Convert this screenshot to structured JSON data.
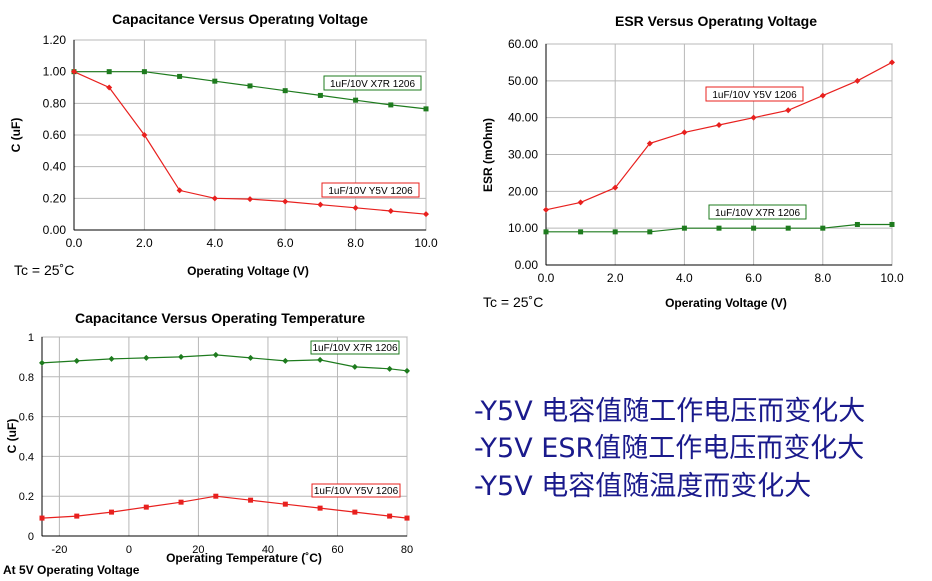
{
  "chart_data": [
    {
      "type": "line",
      "title": "Capacitance Versus Operatıng Voltage",
      "xlabel": "Operating Voltage (V)",
      "ylabel": "C (uF)",
      "xlim": [
        0,
        10
      ],
      "ylim": [
        0,
        1.2
      ],
      "xticks": [
        "0.0",
        "2.0",
        "4.0",
        "6.0",
        "8.0",
        "10.0"
      ],
      "yticks": [
        "0.00",
        "0.20",
        "0.40",
        "0.60",
        "0.80",
        "1.00",
        "1.20"
      ],
      "note": "Tc = 25˚C",
      "grid": true,
      "series": [
        {
          "name": "1uF/10V X7R 1206",
          "color": "#1e7b1e",
          "marker": "square",
          "x": [
            0,
            1,
            2,
            3,
            4,
            5,
            6,
            7,
            8,
            9,
            10
          ],
          "y": [
            1.0,
            1.0,
            1.0,
            0.97,
            0.94,
            0.91,
            0.88,
            0.85,
            0.82,
            0.79,
            0.765
          ]
        },
        {
          "name": "1uF/10V Y5V 1206",
          "color": "#e8201e",
          "marker": "diamond",
          "x": [
            0,
            1,
            2,
            3,
            4,
            5,
            6,
            7,
            8,
            9,
            10
          ],
          "y": [
            1.0,
            0.9,
            0.6,
            0.25,
            0.2,
            0.195,
            0.18,
            0.16,
            0.14,
            0.12,
            0.1
          ]
        }
      ]
    },
    {
      "type": "line",
      "title": "ESR Versus Operatıng Voltage",
      "xlabel": "Operating Voltage (V)",
      "ylabel": "ESR (mOhm)",
      "xlim": [
        0,
        10
      ],
      "ylim": [
        0,
        60
      ],
      "xticks": [
        "0.0",
        "2.0",
        "4.0",
        "6.0",
        "8.0",
        "10.0"
      ],
      "yticks": [
        "0.00",
        "10.00",
        "20.00",
        "30.00",
        "40.00",
        "50.00",
        "60.00"
      ],
      "note": "Tc = 25˚C",
      "grid": true,
      "series": [
        {
          "name": "1uF/10V Y5V 1206",
          "color": "#e8201e",
          "marker": "diamond",
          "x": [
            0,
            1,
            2,
            3,
            4,
            5,
            6,
            7,
            8,
            9,
            10
          ],
          "y": [
            15,
            17,
            21,
            33,
            36,
            38,
            40,
            42,
            46,
            50,
            55
          ]
        },
        {
          "name": "1uF/10V X7R 1206",
          "color": "#1e7b1e",
          "marker": "square",
          "x": [
            0,
            1,
            2,
            3,
            4,
            5,
            6,
            7,
            8,
            9,
            10
          ],
          "y": [
            9,
            9,
            9,
            9,
            10,
            10,
            10,
            10,
            10,
            11,
            11
          ]
        }
      ]
    },
    {
      "type": "line",
      "title": "Capacitance Versus Operating Temperature",
      "xlabel": "Operating Temperature (˚C)",
      "ylabel": "C (uF)",
      "xlim": [
        -25,
        80
      ],
      "ylim": [
        0,
        1
      ],
      "xticks": [
        "-20",
        "0",
        "20",
        "40",
        "60",
        "80"
      ],
      "yticks": [
        "0",
        "0.2",
        "0.4",
        "0.6",
        "0.8",
        "1"
      ],
      "note": "At 5V Operating Voltage",
      "grid": true,
      "series": [
        {
          "name": "1uF/10V X7R 1206",
          "color": "#1e7b1e",
          "marker": "diamond",
          "x": [
            -25,
            -15,
            -5,
            5,
            15,
            25,
            35,
            45,
            55,
            65,
            75,
            80
          ],
          "y": [
            0.87,
            0.88,
            0.89,
            0.895,
            0.9,
            0.91,
            0.895,
            0.88,
            0.885,
            0.85,
            0.84,
            0.83
          ]
        },
        {
          "name": "1uF/10V Y5V 1206",
          "color": "#e8201e",
          "marker": "square",
          "x": [
            -25,
            -15,
            -5,
            5,
            15,
            25,
            35,
            45,
            55,
            65,
            75,
            80
          ],
          "y": [
            0.09,
            0.1,
            0.12,
            0.145,
            0.17,
            0.2,
            0.18,
            0.16,
            0.14,
            0.12,
            0.1,
            0.09
          ]
        }
      ]
    }
  ],
  "bullets": [
    "-Y5V 电容值随工作电压而变化大",
    "-Y5V ESR值随工作电压而变化大",
    "-Y5V 电容值随温度而变化大"
  ]
}
